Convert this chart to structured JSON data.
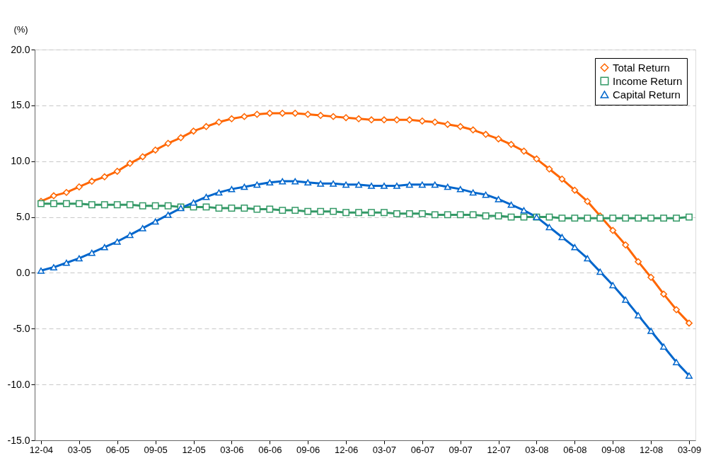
{
  "chart_data": {
    "type": "line",
    "ylabel": "(%)",
    "categories": [
      "12-04",
      null,
      null,
      "03-05",
      null,
      null,
      "06-05",
      null,
      null,
      "09-05",
      null,
      null,
      "12-05",
      null,
      null,
      "03-06",
      null,
      null,
      "06-06",
      null,
      null,
      "09-06",
      null,
      null,
      "12-06",
      null,
      null,
      "03-07",
      null,
      null,
      "06-07",
      null,
      null,
      "09-07",
      null,
      null,
      "12-07",
      null,
      null,
      "03-08",
      null,
      null,
      "06-08",
      null,
      null,
      "09-08",
      null,
      null,
      "12-08",
      null,
      null,
      "03-09"
    ],
    "series": [
      {
        "name": "Total Return",
        "color": "#ff6600",
        "marker": "diamond",
        "values": [
          6.4,
          6.9,
          7.2,
          7.7,
          8.2,
          8.6,
          9.1,
          9.8,
          10.4,
          11.0,
          11.6,
          12.1,
          12.7,
          13.1,
          13.5,
          13.8,
          14.0,
          14.2,
          14.3,
          14.3,
          14.3,
          14.2,
          14.1,
          14.0,
          13.9,
          13.8,
          13.7,
          13.7,
          13.7,
          13.7,
          13.6,
          13.5,
          13.3,
          13.1,
          12.8,
          12.4,
          12.0,
          11.5,
          10.9,
          10.2,
          9.3,
          8.4,
          7.4,
          6.4,
          5.1,
          3.8,
          2.5,
          1.0,
          -0.4,
          -1.9,
          -3.3,
          -4.5
        ]
      },
      {
        "name": "Income Return",
        "color": "#339966",
        "marker": "square",
        "values": [
          6.2,
          6.2,
          6.2,
          6.2,
          6.1,
          6.1,
          6.1,
          6.1,
          6.0,
          6.0,
          6.0,
          5.9,
          5.9,
          5.9,
          5.8,
          5.8,
          5.8,
          5.7,
          5.7,
          5.6,
          5.6,
          5.5,
          5.5,
          5.5,
          5.4,
          5.4,
          5.4,
          5.4,
          5.3,
          5.3,
          5.3,
          5.2,
          5.2,
          5.2,
          5.2,
          5.1,
          5.1,
          5.0,
          5.0,
          5.0,
          5.0,
          4.9,
          4.9,
          4.9,
          4.9,
          4.9,
          4.9,
          4.9,
          4.9,
          4.9,
          4.9,
          5.0
        ]
      },
      {
        "name": "Capital Return",
        "color": "#0066cc",
        "marker": "triangle",
        "values": [
          0.2,
          0.5,
          0.9,
          1.3,
          1.8,
          2.3,
          2.8,
          3.4,
          4.0,
          4.6,
          5.2,
          5.8,
          6.3,
          6.8,
          7.2,
          7.5,
          7.7,
          7.9,
          8.1,
          8.2,
          8.2,
          8.1,
          8.0,
          8.0,
          7.9,
          7.9,
          7.8,
          7.8,
          7.8,
          7.9,
          7.9,
          7.9,
          7.7,
          7.5,
          7.2,
          7.0,
          6.6,
          6.1,
          5.6,
          5.0,
          4.1,
          3.2,
          2.3,
          1.3,
          0.1,
          -1.1,
          -2.4,
          -3.8,
          -5.2,
          -6.6,
          -8.0,
          -9.2
        ]
      }
    ],
    "ylim": [
      -15.0,
      20.0
    ],
    "yticks": [
      {
        "value": -15,
        "label": "-15.0"
      },
      {
        "value": -10,
        "label": "-10.0"
      },
      {
        "value": -5,
        "label": "-5.0"
      },
      {
        "value": 0,
        "label": "0.0"
      },
      {
        "value": 5,
        "label": "5.0"
      },
      {
        "value": 10,
        "label": "10.0"
      },
      {
        "value": 15,
        "label": "15.0"
      },
      {
        "value": 20,
        "label": "20.0"
      }
    ],
    "grid": "y",
    "legend": "top right",
    "line_style": "solid"
  }
}
